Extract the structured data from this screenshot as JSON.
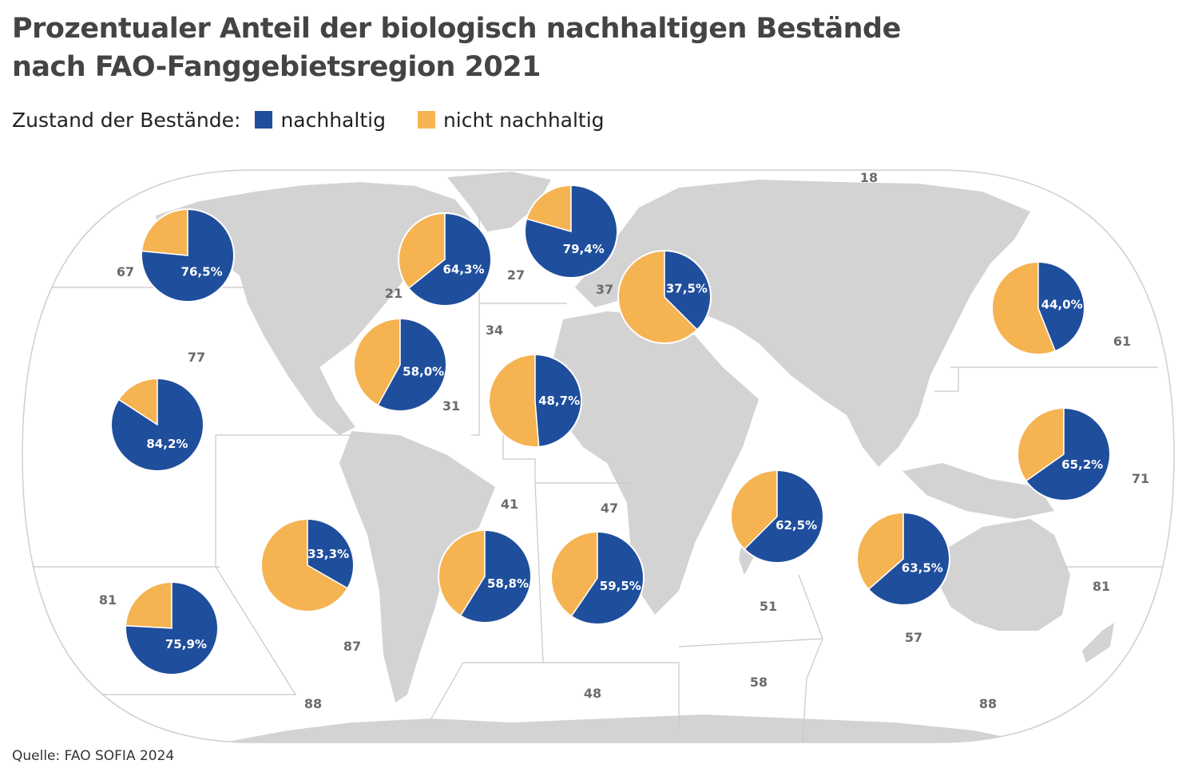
{
  "title": [
    "Prozentualer Anteil der biologisch nachhaltigen Bestände",
    "nach FAO-Fanggebietsregion 2021"
  ],
  "legend": {
    "heading": "Zustand der Bestände:",
    "items": [
      {
        "label": "nachhaltig",
        "color": "#1f4e9c"
      },
      {
        "label": "nicht nachhaltig",
        "color": "#f5b351"
      }
    ]
  },
  "colors": {
    "sustainable": "#1f4e9c",
    "unsustainable": "#f5b351",
    "land": "#d3d3d3",
    "ocean": "#ffffff",
    "border": "#c8c8c8"
  },
  "region_labels": [
    "18",
    "67",
    "21",
    "27",
    "37",
    "34",
    "77",
    "31",
    "61",
    "71",
    "41",
    "47",
    "51",
    "81",
    "87",
    "57",
    "81",
    "88",
    "48",
    "58",
    "88"
  ],
  "chart_data": {
    "type": "pie",
    "title": "Prozentualer Anteil der biologisch nachhaltigen Bestände nach FAO-Fanggebietsregion 2021",
    "series": [
      {
        "name": "nachhaltig",
        "regions": [
          {
            "region": "67",
            "value": 76.5,
            "label": "76,5%"
          },
          {
            "region": "21",
            "value": 64.3,
            "label": "64,3%"
          },
          {
            "region": "27",
            "value": 79.4,
            "label": "79,4%"
          },
          {
            "region": "37",
            "value": 37.5,
            "label": "37,5%"
          },
          {
            "region": "61",
            "value": 44.0,
            "label": "44,0%"
          },
          {
            "region": "31",
            "value": 58.0,
            "label": "58,0%"
          },
          {
            "region": "34",
            "value": 48.7,
            "label": "48,7%"
          },
          {
            "region": "77",
            "value": 84.2,
            "label": "84,2%"
          },
          {
            "region": "71",
            "value": 65.2,
            "label": "65,2%"
          },
          {
            "region": "51",
            "value": 62.5,
            "label": "62,5%"
          },
          {
            "region": "57",
            "value": 63.5,
            "label": "63,5%"
          },
          {
            "region": "87",
            "value": 33.3,
            "label": "33,3%"
          },
          {
            "region": "41",
            "value": 58.8,
            "label": "58,8%"
          },
          {
            "region": "47",
            "value": 59.5,
            "label": "59,5%"
          },
          {
            "region": "81",
            "value": 75.9,
            "label": "75,9%"
          }
        ]
      }
    ],
    "source": "Quelle: FAO SOFIA 2024"
  }
}
